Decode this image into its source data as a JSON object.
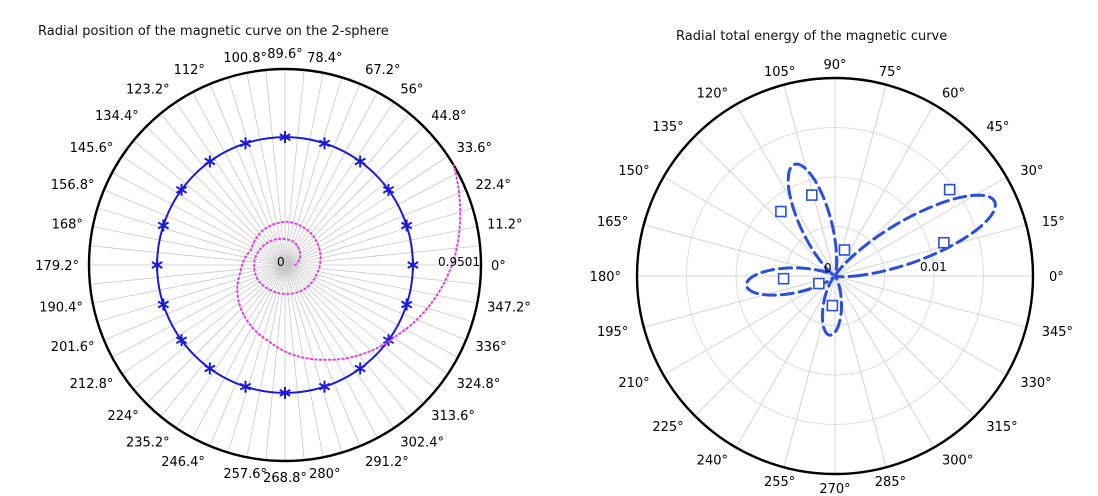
{
  "chart_data": [
    {
      "type": "polar",
      "title": "Radial position of the magnetic curve on the  2-sphere",
      "angle_ticks": [
        "0°",
        "11.2°",
        "22.4°",
        "33.6°",
        "44.8°",
        "56°",
        "67.2°",
        "78.4°",
        "89.6°",
        "100.8°",
        "112°",
        "123.2°",
        "134.4°",
        "145.6°",
        "156.8°",
        "168°",
        "179.2°",
        "190.4°",
        "201.6°",
        "212.8°",
        "224°",
        "235.2°",
        "246.4°",
        "257.6°",
        "268.8°",
        "280°",
        "291.2°",
        "302.4°",
        "313.6°",
        "324.8°",
        "336°",
        "347.2°"
      ],
      "radial_labels": [
        "0",
        "0.9501"
      ],
      "rmax": 0.9501,
      "grid": true,
      "series": [
        {
          "style": "solid line with star markers",
          "color": "#1a1ad6",
          "r": 0.62,
          "marker_angles_deg": [
            0,
            18,
            36,
            54,
            72,
            90,
            108,
            126,
            144,
            162,
            180,
            198,
            216,
            234,
            252,
            270,
            288,
            306,
            324,
            342
          ]
        },
        {
          "style": "dotted magenta spiral",
          "color": "#e040e0",
          "points": [
            [
              0.0,
              0.05
            ],
            [
              0.6,
              0.09
            ],
            [
              1.2,
              0.12
            ],
            [
              1.8,
              0.13
            ],
            [
              2.4,
              0.14
            ],
            [
              3.0,
              0.15
            ],
            [
              3.6,
              0.15
            ],
            [
              4.2,
              0.14
            ],
            [
              4.8,
              0.14
            ],
            [
              5.4,
              0.15
            ],
            [
              6.0,
              0.16
            ],
            [
              6.6,
              0.18
            ],
            [
              7.2,
              0.2
            ],
            [
              7.8,
              0.21
            ],
            [
              8.4,
              0.2
            ],
            [
              9.0,
              0.18
            ],
            [
              9.6,
              0.22
            ],
            [
              10.2,
              0.3
            ],
            [
              10.8,
              0.38
            ],
            [
              11.4,
              0.5
            ],
            [
              12.0,
              0.64
            ],
            [
              12.6,
              0.82
            ],
            [
              13.1,
              0.95
            ]
          ]
        }
      ]
    },
    {
      "type": "polar",
      "title": "Radial total energy of the magnetic curve",
      "angle_ticks": [
        "0°",
        "15°",
        "30°",
        "45°",
        "60°",
        "75°",
        "90°",
        "105°",
        "120°",
        "135°",
        "150°",
        "165°",
        "180°",
        "195°",
        "210°",
        "225°",
        "240°",
        "255°",
        "270°",
        "285°",
        "300°",
        "315°",
        "330°",
        "345°"
      ],
      "radial_labels": [
        "0",
        "0.01"
      ],
      "rmax": 0.02,
      "grid": true,
      "series": [
        {
          "style": "dashed line with square markers",
          "color": "#2a4fd8",
          "lobes": [
            {
              "dir_deg": 25,
              "peak": 0.0178,
              "width_deg": 12
            },
            {
              "dir_deg": 110,
              "peak": 0.012,
              "width_deg": 13
            },
            {
              "dir_deg": 186,
              "peak": 0.009,
              "width_deg": 14
            },
            {
              "dir_deg": 265,
              "peak": 0.006,
              "width_deg": 15
            }
          ],
          "markers": [
            [
              37,
              0.0145
            ],
            [
              17,
              0.0115
            ],
            [
              106,
              0.0085
            ],
            [
              130,
              0.0085
            ],
            [
              183,
              0.0052
            ],
            [
              205,
              0.0018
            ],
            [
              265,
              0.003
            ],
            [
              70,
              0.0028
            ]
          ]
        }
      ]
    }
  ]
}
